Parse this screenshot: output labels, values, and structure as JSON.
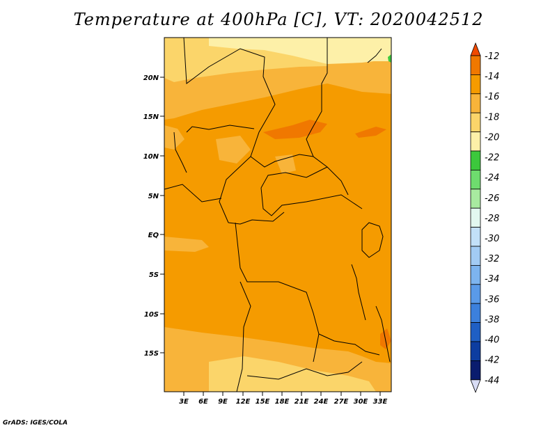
{
  "title": "Temperature at 400hPa [C], VT: 2020042512",
  "credit": "GrADS: IGES/COLA",
  "map": {
    "lat_labels": [
      "20N",
      "15N",
      "10N",
      "5N",
      "EQ",
      "5S",
      "10S",
      "15S"
    ],
    "lon_labels": [
      "3E",
      "6E",
      "9E",
      "12E",
      "15E",
      "18E",
      "21E",
      "24E",
      "27E",
      "30E",
      "33E"
    ]
  },
  "colorbar": {
    "labels": [
      "-12",
      "-14",
      "-16",
      "-18",
      "-20",
      "-22",
      "-24",
      "-26",
      "-28",
      "-30",
      "-32",
      "-34",
      "-36",
      "-38",
      "-40",
      "-42",
      "-44"
    ],
    "colors": [
      "#f04a00",
      "#f07800",
      "#f59b00",
      "#f8b43a",
      "#fbd56a",
      "#fdf0a8",
      "#3cc83c",
      "#6edc6e",
      "#a8eaa0",
      "#e2f8f0",
      "#c2e0f8",
      "#a2cbf4",
      "#7db4ef",
      "#5a9ae8",
      "#3c80dc",
      "#1f5fc4",
      "#0d3da0",
      "#0a1c6e",
      "#d8dcf4"
    ]
  },
  "field_colors": {
    "dominant": "#f59b00",
    "warm_patch": "#f07800",
    "cool_band": "#f8b43a",
    "cooler_band": "#fbd56a",
    "coolest": "#fdf0a8",
    "green_patch": "#3cc83c"
  }
}
